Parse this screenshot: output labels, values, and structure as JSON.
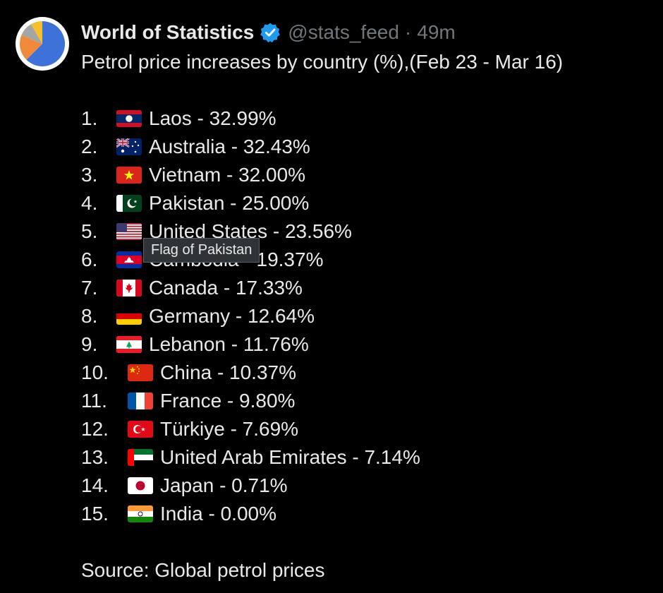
{
  "tweet": {
    "display_name": "World of Statistics",
    "handle": "@stats_feed",
    "separator": "·",
    "time": "49m",
    "title": "Petrol price increases by country (%),(Feb 23 - Mar 16)",
    "source": "Source: Global petrol prices"
  },
  "tooltip": {
    "text": "Flag of Pakistan"
  },
  "items": [
    {
      "rank": "1.",
      "text": "Laos - 32.99%",
      "flag": "laos-flag-icon"
    },
    {
      "rank": "2.",
      "text": "Australia - 32.43%",
      "flag": "australia-flag-icon"
    },
    {
      "rank": "3.",
      "text": "Vietnam - 32.00%",
      "flag": "vietnam-flag-icon"
    },
    {
      "rank": "4.",
      "text": "Pakistan - 25.00%",
      "flag": "pakistan-flag-icon"
    },
    {
      "rank": "5.",
      "text": "United States - 23.56%",
      "flag": "united-states-flag-icon"
    },
    {
      "rank": "6.",
      "text": "Cambodia - 19.37%",
      "flag": "cambodia-flag-icon"
    },
    {
      "rank": "7.",
      "text": "Canada - 17.33%",
      "flag": "canada-flag-icon"
    },
    {
      "rank": "8.",
      "text": "Germany - 12.64%",
      "flag": "germany-flag-icon"
    },
    {
      "rank": "9.",
      "text": "Lebanon - 11.76%",
      "flag": "lebanon-flag-icon"
    },
    {
      "rank": "10.",
      "text": "China - 10.37%",
      "flag": "china-flag-icon"
    },
    {
      "rank": "11.",
      "text": "France - 9.80%",
      "flag": "france-flag-icon"
    },
    {
      "rank": "12.",
      "text": "Türkiye - 7.69%",
      "flag": "turkiye-flag-icon"
    },
    {
      "rank": "13.",
      "text": "United Arab Emirates - 7.14%",
      "flag": "uae-flag-icon"
    },
    {
      "rank": "14.",
      "text": "Japan - 0.71%",
      "flag": "japan-flag-icon"
    },
    {
      "rank": "15.",
      "text": "India - 0.00%",
      "flag": "india-flag-icon"
    }
  ],
  "colors": {
    "background": "#000000",
    "text": "#e7e9ea",
    "muted": "#71767b",
    "verified": "#1d9bf0",
    "tooltip_bg": "#2f3336"
  },
  "icons": {
    "verified": "verified-badge-icon",
    "avatar": "pie-chart-avatar"
  }
}
